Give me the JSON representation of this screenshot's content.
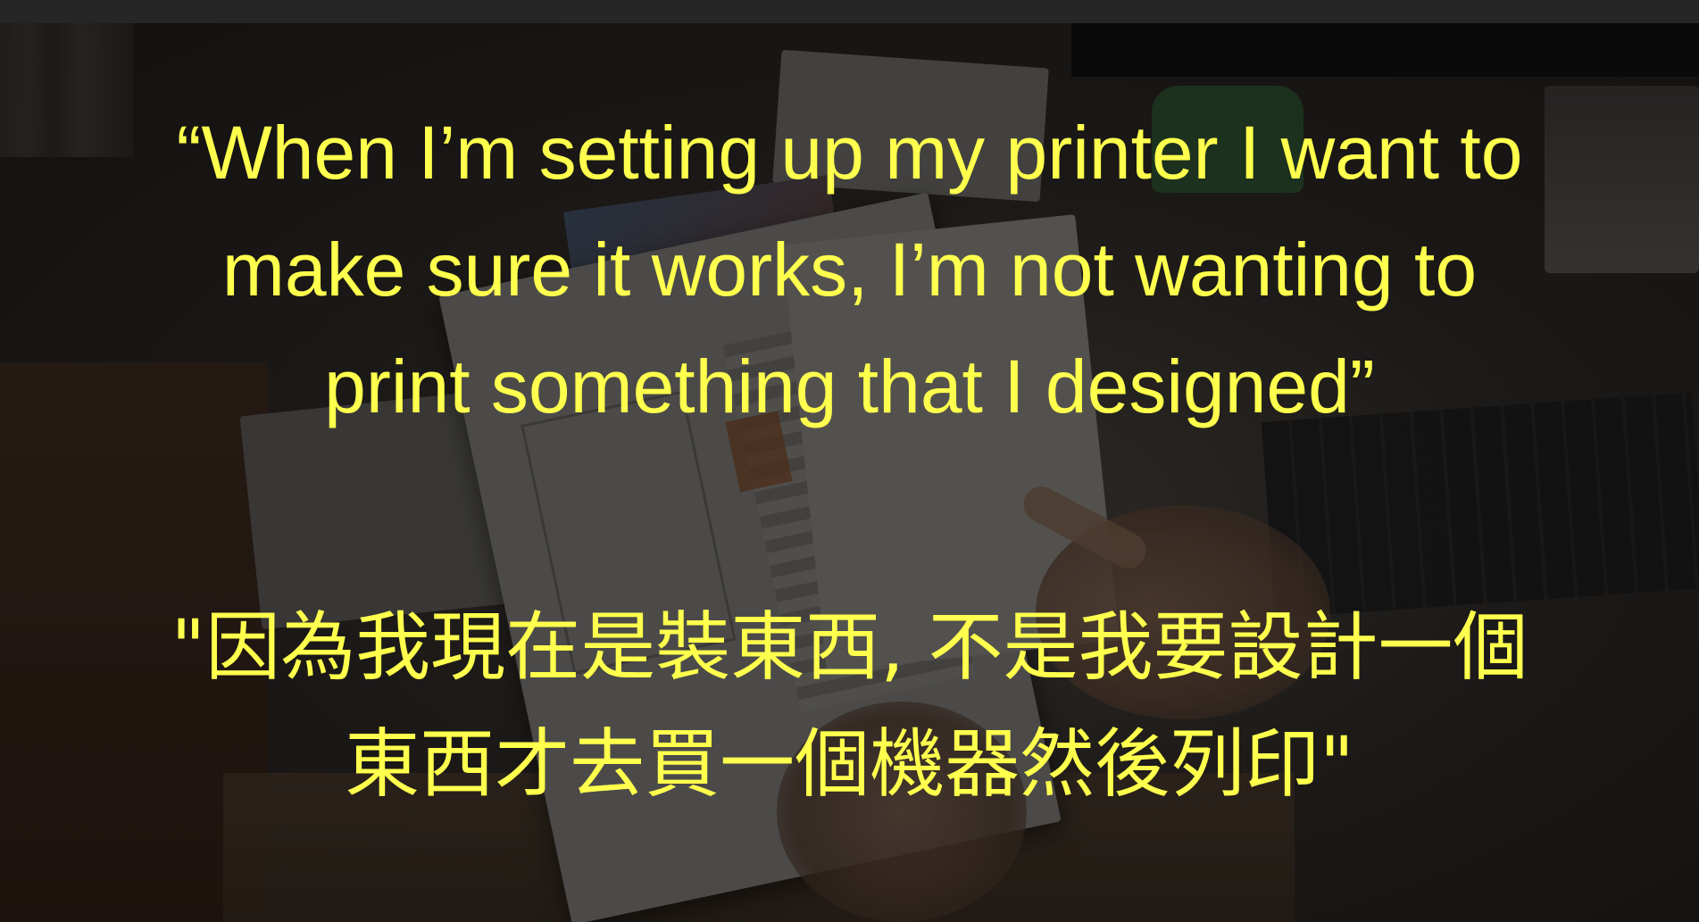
{
  "caption": {
    "english": "“When I’m setting up my printer I want to make sure it works, I’m not wanting to print something that I designed”",
    "chinese": "\"因為我現在是裝東西, 不是我要設計一個東西才去買一個機器然後列印\""
  },
  "colors": {
    "caption_text": "#ffff4d",
    "top_bar": "#262626"
  }
}
